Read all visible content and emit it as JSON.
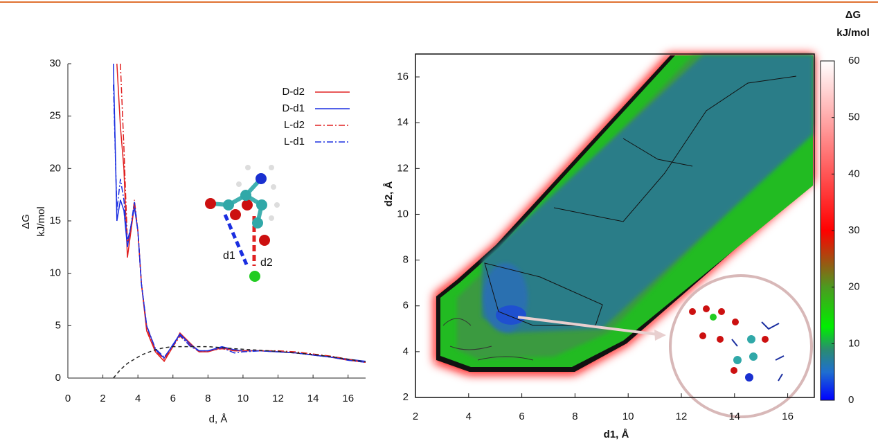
{
  "chart_data": [
    {
      "type": "line",
      "xlabel": "d, Å",
      "ylabel": [
        "ΔG",
        "kJ/mol"
      ],
      "annotations": [
        "d1",
        "d2"
      ],
      "x": [
        2.6,
        2.8,
        3.0,
        3.2,
        3.4,
        3.6,
        3.8,
        4.0,
        4.2,
        4.5,
        5.0,
        5.5,
        6.0,
        6.4,
        7.0,
        7.5,
        8.0,
        8.8,
        9.5,
        10,
        11,
        12,
        13,
        14,
        15,
        16,
        17
      ],
      "series": [
        {
          "name": "D-d2",
          "color": "#e02020",
          "style": "solid",
          "values": [
            null,
            30,
            24,
            20,
            11.5,
            14,
            16.5,
            14,
            9,
            4.5,
            2.5,
            1.6,
            3,
            4.3,
            3.3,
            2.5,
            2.5,
            2.9,
            2.6,
            2.6,
            2.6,
            2.5,
            2.4,
            2.2,
            2.0,
            1.7,
            1.5
          ]
        },
        {
          "name": "D-d1",
          "color": "#1a2ee0",
          "style": "solid",
          "values": [
            30,
            15,
            17,
            16,
            12.5,
            14.5,
            16.3,
            14,
            9,
            5,
            2.7,
            1.9,
            3.2,
            4.2,
            3.2,
            2.6,
            2.6,
            3.0,
            2.7,
            2.6,
            2.6,
            2.5,
            2.4,
            2.2,
            2.0,
            1.8,
            1.6
          ]
        },
        {
          "name": "L-d2",
          "color": "#e02020",
          "style": "dashdot",
          "values": [
            null,
            null,
            30,
            22,
            13,
            14,
            17,
            14,
            9,
            4.8,
            2.6,
            1.8,
            3.0,
            4.0,
            3.1,
            2.5,
            2.6,
            2.8,
            2.6,
            2.6,
            2.6,
            2.6,
            2.5,
            2.3,
            2.1,
            1.8,
            1.5
          ]
        },
        {
          "name": "L-d1",
          "color": "#1a2ee0",
          "style": "dashdot",
          "values": [
            28,
            16,
            19,
            17,
            13,
            14.5,
            16.8,
            14,
            9,
            5,
            2.8,
            2.0,
            3.1,
            4.1,
            3.0,
            2.6,
            2.6,
            2.9,
            2.4,
            2.5,
            2.6,
            2.5,
            2.4,
            2.2,
            2.0,
            1.7,
            1.5
          ]
        },
        {
          "color": "#222222",
          "style": "dashed",
          "values": [
            0,
            0.4,
            0.8,
            1.1,
            1.4,
            1.6,
            1.8,
            2.0,
            2.2,
            2.4,
            2.7,
            2.9,
            3.0,
            3.0,
            3.0,
            3.0,
            3.0,
            2.9,
            2.8,
            2.75,
            2.65,
            2.55,
            2.4,
            2.25,
            2.05,
            1.8,
            1.55
          ]
        }
      ],
      "xlim": [
        0,
        17
      ],
      "xticks": [
        0,
        2,
        4,
        6,
        8,
        10,
        12,
        14,
        16
      ],
      "ylim": [
        0,
        30
      ],
      "yticks": [
        0,
        5,
        10,
        15,
        20,
        25,
        30
      ],
      "legend": "upper right"
    },
    {
      "type": "heatmap",
      "xlabel": "d1, Å",
      "ylabel": "d2, Å",
      "xlim": [
        2,
        17
      ],
      "xticks": [
        2,
        4,
        6,
        8,
        10,
        12,
        14,
        16
      ],
      "ylim": [
        2,
        17
      ],
      "yticks": [
        2,
        4,
        6,
        8,
        10,
        12,
        14,
        16
      ],
      "colorbar_label": [
        "ΔG",
        "kJ/mol"
      ],
      "clim": [
        0,
        60
      ],
      "cticks": [
        0,
        10,
        20,
        30,
        40,
        50,
        60
      ],
      "colormap": [
        {
          "value": 0,
          "color": "#0000ff"
        },
        {
          "value": 5,
          "color": "#1f6fd0"
        },
        {
          "value": 9,
          "color": "#2a8c70"
        },
        {
          "value": 13,
          "color": "#00ee00"
        },
        {
          "value": 20,
          "color": "#4c9a20"
        },
        {
          "value": 30,
          "color": "#ff0000"
        },
        {
          "value": 45,
          "color": "#ff8080"
        },
        {
          "value": 60,
          "color": "#ffffff"
        }
      ]
    }
  ]
}
